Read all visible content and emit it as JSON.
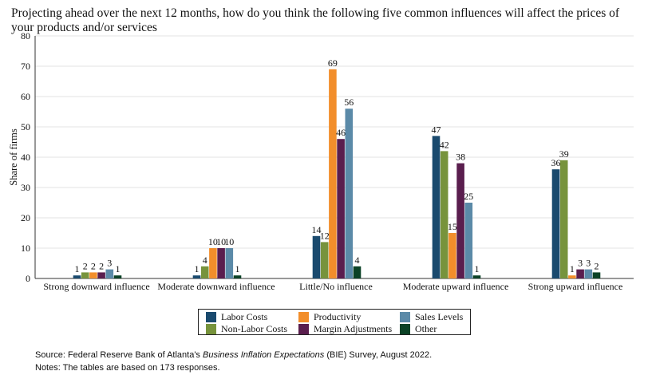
{
  "title": "Projecting ahead over the next 12 months, how do you think the following five common influences will affect the prices of your products and/or services",
  "chart_data": {
    "type": "bar",
    "title": "Projecting ahead over the next 12 months, how do you think the following five common influences will affect the prices of your products and/or services",
    "xlabel": "",
    "ylabel": "Share of firms",
    "ylim": [
      0,
      80
    ],
    "yticks": [
      0,
      10,
      20,
      30,
      40,
      50,
      60,
      70,
      80
    ],
    "grid": true,
    "categories": [
      "Strong downward influence",
      "Moderate downward influence",
      "Little/No influence",
      "Moderate upward influence",
      "Strong upward influence"
    ],
    "series": [
      {
        "name": "Labor Costs",
        "color": "#1a4a6e",
        "values": [
          1,
          1,
          14,
          47,
          36
        ],
        "labels": [
          "1",
          "1",
          "14",
          "47",
          "36"
        ]
      },
      {
        "name": "Non-Labor Costs",
        "color": "#77933c",
        "values": [
          2,
          4,
          12,
          42,
          39
        ],
        "labels": [
          "2",
          "4",
          "12",
          "42",
          "39"
        ]
      },
      {
        "name": "Productivity",
        "color": "#f28e2b",
        "values": [
          2,
          10,
          69,
          15,
          1
        ],
        "labels": [
          "2",
          "10",
          "69",
          "15",
          "1"
        ]
      },
      {
        "name": "Margin Adjustments",
        "color": "#5a1e4e",
        "values": [
          2,
          10,
          46,
          38,
          3
        ],
        "labels": [
          "2",
          "10",
          "46",
          "38",
          "3"
        ]
      },
      {
        "name": "Sales Levels",
        "color": "#5b8aa8",
        "values": [
          3,
          10,
          56,
          25,
          3
        ],
        "labels": [
          "3",
          "10",
          "56",
          "25",
          "3"
        ]
      },
      {
        "name": "Other",
        "color": "#0b4226",
        "values": [
          1,
          1,
          4,
          1,
          2
        ],
        "labels": [
          "1",
          "1",
          "4",
          "1",
          "2"
        ]
      }
    ],
    "legend_position": "bottom"
  },
  "legend": {
    "labor": "Labor Costs",
    "productivity": "Productivity",
    "sales": "Sales Levels",
    "nonlabor": "Non-Labor Costs",
    "margin": "Margin Adjustments",
    "other": "Other"
  },
  "footer": {
    "source_prefix": "Source: Federal Reserve Bank of Atlanta's ",
    "source_italic": "Business Inflation Expectations",
    "source_suffix": " (BIE) Survey, August 2022.",
    "notes": "Notes: The tables are based on 173 responses."
  }
}
